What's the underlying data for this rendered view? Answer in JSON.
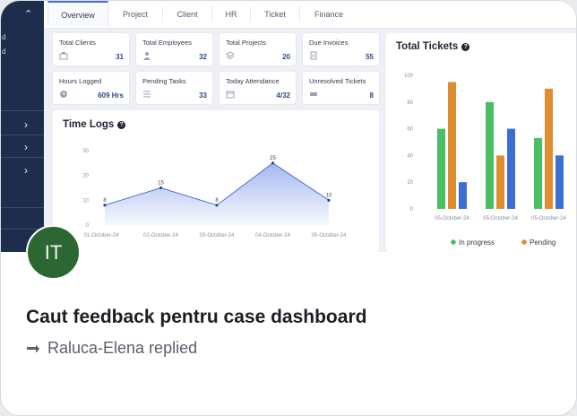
{
  "tabs": [
    "Overview",
    "Project",
    "Client",
    "HR",
    "Ticket",
    "Finance"
  ],
  "active_tab": "Overview",
  "sidebar_fragments": [
    "d",
    "d"
  ],
  "stats": [
    {
      "label": "Total Clients",
      "value": "31",
      "icon": "building-icon"
    },
    {
      "label": "Total Employees",
      "value": "32",
      "icon": "person-icon"
    },
    {
      "label": "Total Projects",
      "value": "20",
      "icon": "layers-icon"
    },
    {
      "label": "Due Invoices",
      "value": "55",
      "icon": "document-icon"
    },
    {
      "label": "Hours Logged",
      "value": "609 Hrs",
      "icon": "clock-icon"
    },
    {
      "label": "Pending Tasks",
      "value": "33",
      "icon": "list-icon"
    },
    {
      "label": "Today Attendance",
      "value": "4/32",
      "icon": "calendar-icon"
    },
    {
      "label": "Unresolved Tickets",
      "value": "8",
      "icon": "ticket-icon"
    }
  ],
  "time_logs": {
    "title": "Time Logs",
    "chart_data": {
      "type": "area",
      "title": "Time Logs",
      "categories": [
        "01-October-24",
        "02-October-24",
        "03-October-24",
        "04-October-24",
        "05-October-24"
      ],
      "values": [
        8,
        15,
        8,
        25,
        10
      ],
      "yticks": [
        0,
        10,
        20,
        30
      ],
      "ylim": [
        0,
        30
      ],
      "color": "#5b7fe3"
    }
  },
  "total_tickets": {
    "title": "Total Tickets",
    "chart_data": {
      "type": "bar",
      "title": "Total Tickets",
      "categories": [
        "05-October-24",
        "05-October-24",
        "05-October-24"
      ],
      "series": [
        {
          "name": "In progress",
          "values": [
            60,
            80,
            53
          ],
          "color": "#4cbf64"
        },
        {
          "name": "Pending",
          "values": [
            95,
            40,
            90
          ],
          "color": "#e08d32"
        },
        {
          "name": "",
          "values": [
            20,
            60,
            40
          ],
          "color": "#3b6fd6"
        }
      ],
      "yticks": [
        0,
        20,
        40,
        60,
        80,
        100
      ],
      "ylim": [
        0,
        100
      ],
      "legend_position": "bottom"
    }
  },
  "avatar_initials": "IT",
  "post_title": "Caut feedback pentru case dashboard",
  "reply_text": "Raluca-Elena replied",
  "colors": {
    "sidebar": "#1f2d4d",
    "accent": "#2f4a86",
    "avatar": "#2c6630"
  }
}
